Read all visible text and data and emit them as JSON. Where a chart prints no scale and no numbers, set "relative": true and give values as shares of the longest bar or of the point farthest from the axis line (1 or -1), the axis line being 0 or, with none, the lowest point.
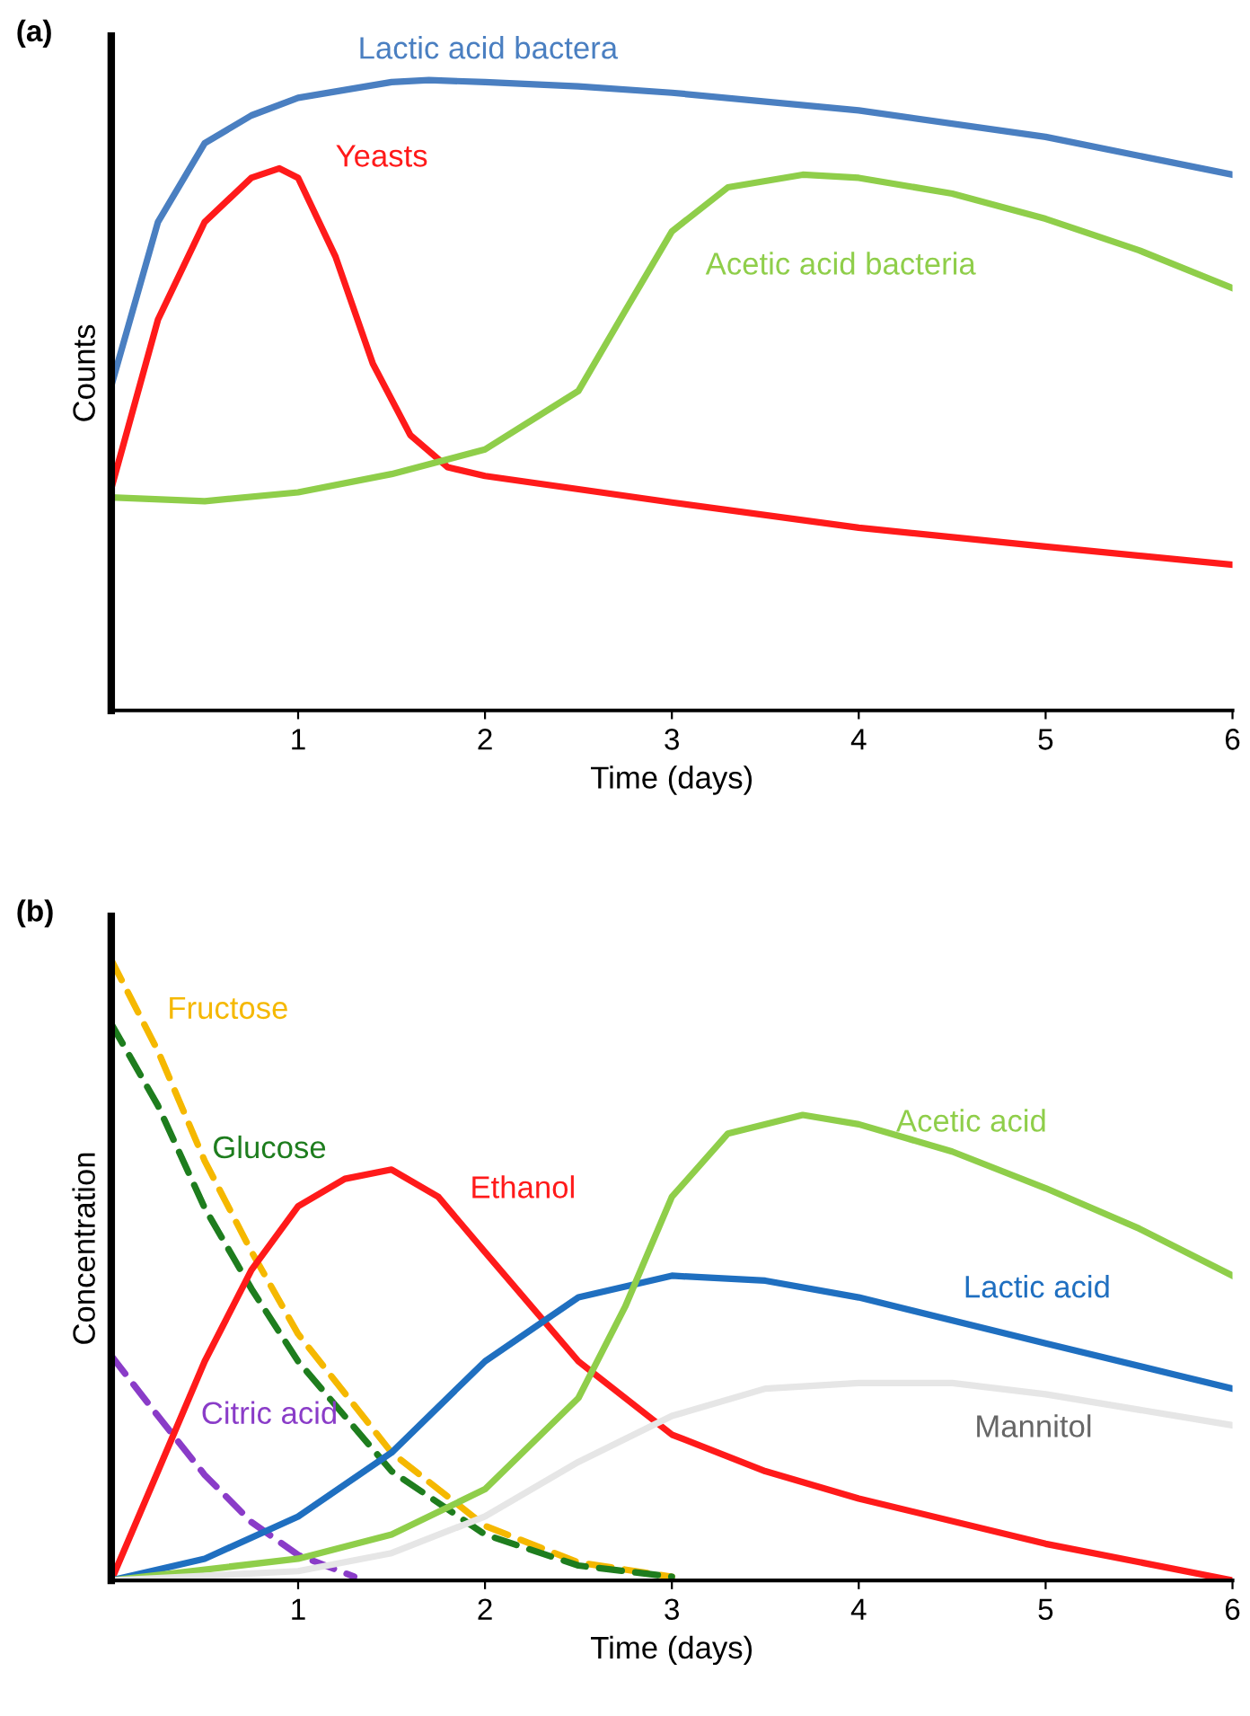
{
  "chart_data": [
    {
      "type": "line",
      "title": "(a)",
      "xlabel": "Time (days)",
      "ylabel": "Counts",
      "relative": true,
      "xlim": [
        0,
        6
      ],
      "xticks": [
        1,
        2,
        3,
        4,
        5,
        6
      ],
      "grid": false,
      "marker": "none",
      "line_style": "solid",
      "series": [
        {
          "name": "Lactic acid bactera",
          "color": "#4a7fc1",
          "x": [
            0,
            0.25,
            0.5,
            0.75,
            1,
            1.5,
            1.7,
            2,
            2.5,
            3,
            4,
            5,
            6
          ],
          "values": [
            0.515,
            0.775,
            0.9,
            0.944,
            0.972,
            0.997,
            1,
            0.997,
            0.99,
            0.98,
            0.952,
            0.91,
            0.85
          ]
        },
        {
          "name": "Yeasts",
          "color": "#ff1a1a",
          "x": [
            0,
            0.25,
            0.5,
            0.75,
            0.9,
            1,
            1.2,
            1.4,
            1.6,
            1.8,
            2,
            3,
            4,
            5,
            6
          ],
          "values": [
            0.352,
            0.62,
            0.775,
            0.845,
            0.86,
            0.845,
            0.72,
            0.55,
            0.437,
            0.386,
            0.372,
            0.33,
            0.29,
            0.26,
            0.231
          ]
        },
        {
          "name": "Acetic acid bacteria",
          "color": "#8fce4a",
          "x": [
            0,
            0.5,
            1,
            1.5,
            2,
            2.5,
            2.75,
            3,
            3.3,
            3.7,
            4,
            4.5,
            5,
            5.5,
            6
          ],
          "values": [
            0.338,
            0.332,
            0.346,
            0.375,
            0.414,
            0.507,
            0.634,
            0.76,
            0.83,
            0.85,
            0.845,
            0.82,
            0.78,
            0.73,
            0.67
          ]
        }
      ]
    },
    {
      "type": "line",
      "title": "(b)",
      "xlabel": "Time (days)",
      "ylabel": "Concentration",
      "relative": true,
      "xlim": [
        0,
        6
      ],
      "xticks": [
        1,
        2,
        3,
        4,
        5,
        6
      ],
      "grid": false,
      "marker": "none",
      "series": [
        {
          "name": "Fructose",
          "color": "#f5b800",
          "line_style": "dashed",
          "x": [
            0,
            0.25,
            0.5,
            0.75,
            1,
            1.5,
            2,
            2.5,
            3
          ],
          "values": [
            1,
            0.853,
            0.676,
            0.53,
            0.397,
            0.206,
            0.088,
            0.029,
            0.006
          ]
        },
        {
          "name": "Glucose",
          "color": "#1e7d1e",
          "line_style": "dashed",
          "x": [
            0,
            0.25,
            0.5,
            0.75,
            1,
            1.5,
            2,
            2.5,
            3
          ],
          "values": [
            0.897,
            0.765,
            0.6,
            0.47,
            0.353,
            0.176,
            0.074,
            0.024,
            0.006
          ]
        },
        {
          "name": "Citric acid",
          "color": "#8a3cc8",
          "line_style": "dashed",
          "x": [
            0,
            0.25,
            0.5,
            0.75,
            1,
            1.3
          ],
          "values": [
            0.362,
            0.265,
            0.17,
            0.094,
            0.041,
            0.006
          ]
        },
        {
          "name": "Ethanol",
          "color": "#ff1a1a",
          "line_style": "solid",
          "x": [
            0,
            0.25,
            0.5,
            0.75,
            1,
            1.25,
            1.5,
            1.75,
            2,
            2.5,
            3,
            3.5,
            4,
            5,
            6
          ],
          "values": [
            0,
            0.176,
            0.353,
            0.5,
            0.603,
            0.647,
            0.662,
            0.618,
            0.529,
            0.353,
            0.235,
            0.176,
            0.132,
            0.059,
            0
          ]
        },
        {
          "name": "Lactic acid",
          "color": "#1f6fc0",
          "line_style": "solid",
          "x": [
            0,
            0.5,
            1,
            1.5,
            2,
            2.5,
            3,
            3.5,
            4,
            5,
            6
          ],
          "values": [
            0,
            0.035,
            0.103,
            0.206,
            0.353,
            0.456,
            0.491,
            0.483,
            0.456,
            0.382,
            0.309
          ]
        },
        {
          "name": "Acetic acid",
          "color": "#8fce4a",
          "line_style": "solid",
          "x": [
            0,
            1,
            1.5,
            2,
            2.5,
            2.75,
            3,
            3.3,
            3.7,
            4,
            4.5,
            5,
            5.5,
            6
          ],
          "values": [
            0,
            0.035,
            0.074,
            0.147,
            0.294,
            0.441,
            0.618,
            0.72,
            0.75,
            0.735,
            0.691,
            0.632,
            0.567,
            0.491
          ]
        },
        {
          "name": "Mannitol",
          "color": "#e6e6e6",
          "line_style": "solid",
          "x": [
            0,
            1,
            1.5,
            2,
            2.5,
            3,
            3.5,
            4,
            4.5,
            5,
            6
          ],
          "values": [
            0,
            0.015,
            0.044,
            0.103,
            0.191,
            0.265,
            0.309,
            0.318,
            0.318,
            0.3,
            0.25
          ]
        }
      ]
    }
  ]
}
